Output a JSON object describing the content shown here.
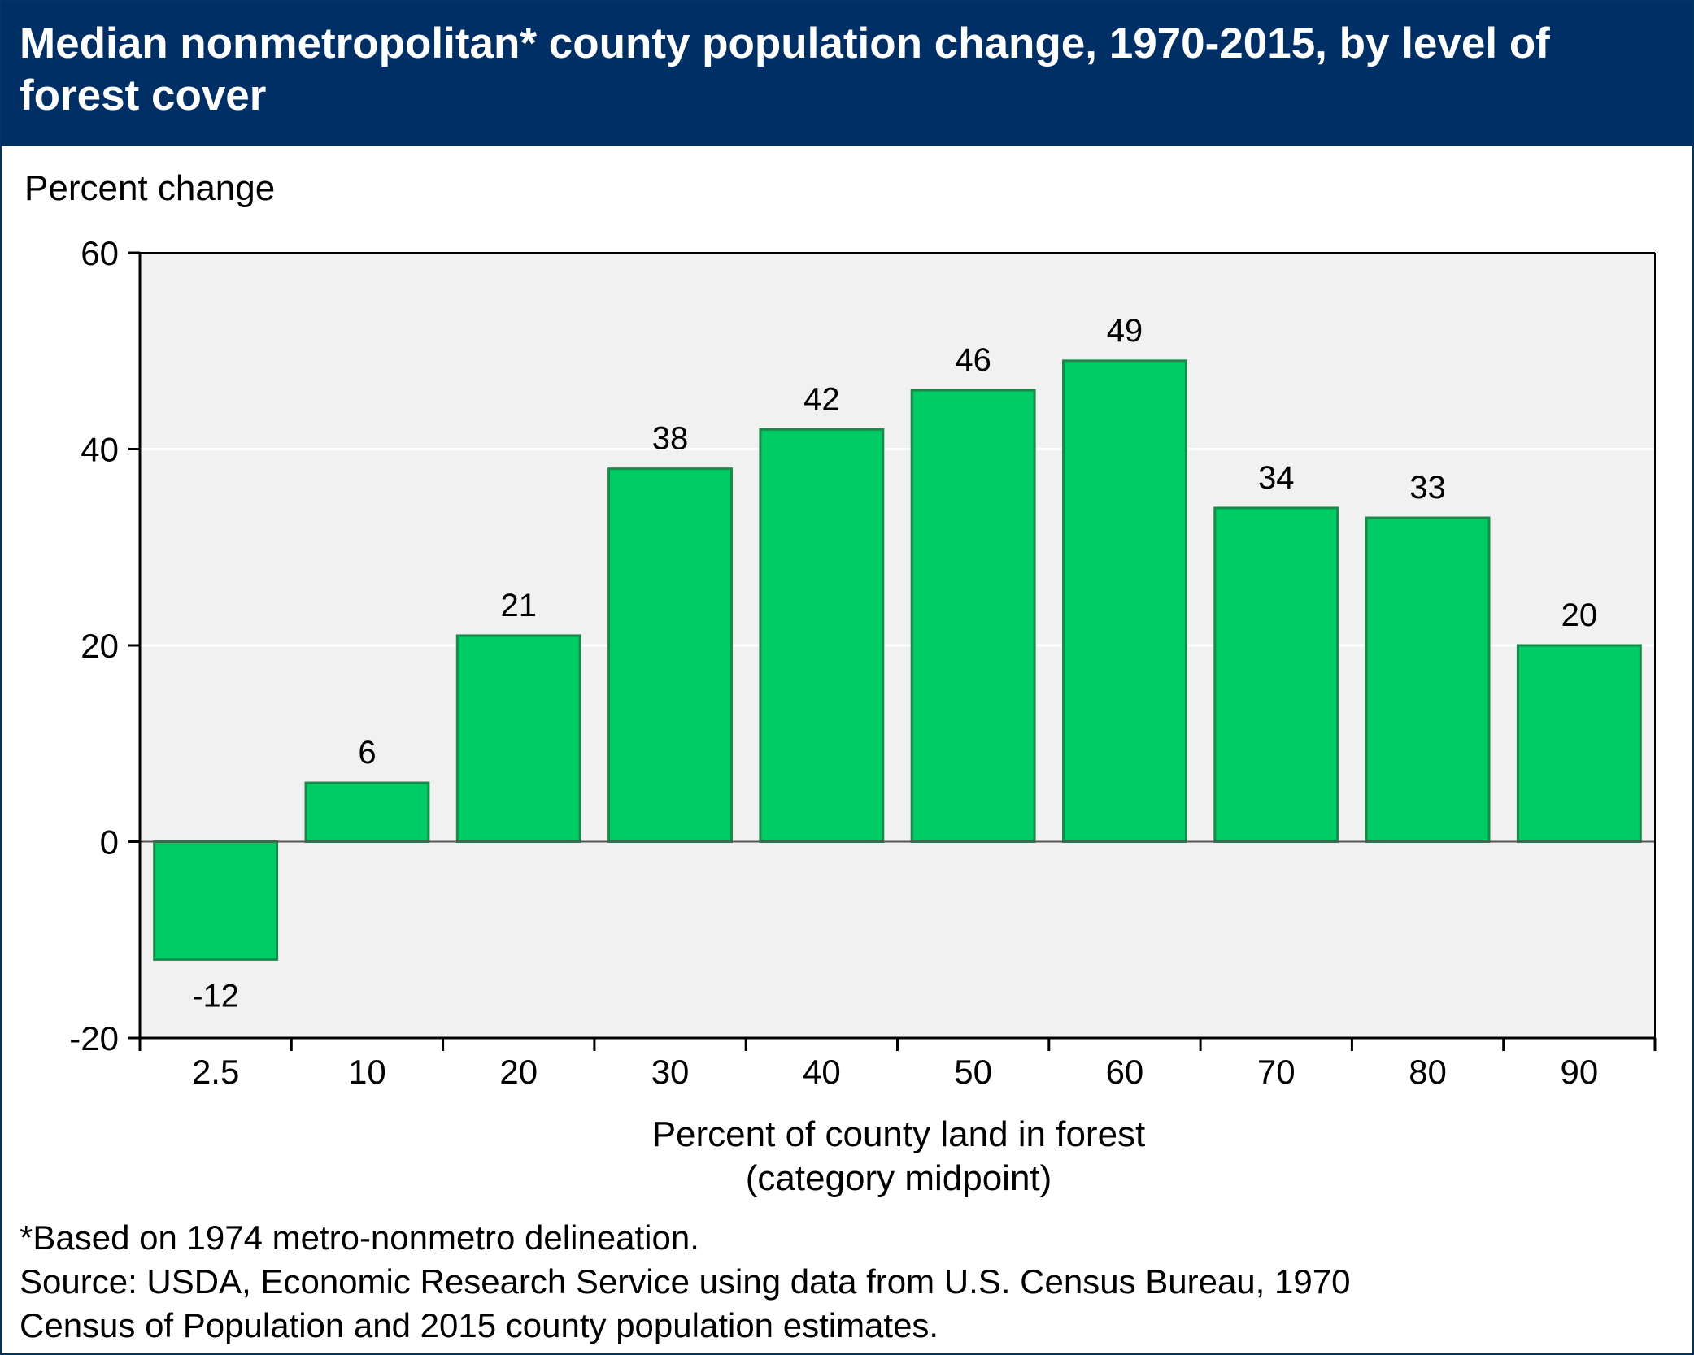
{
  "title": "Median nonmetropolitan* county population change, 1970-2015, by level of forest cover",
  "colors": {
    "header_bg": "#002f65",
    "bar_fill": "#00cc66",
    "bar_stroke": "#1a8a4a",
    "plot_bg": "#f1f1f1"
  },
  "chart_data": {
    "type": "bar",
    "title": "Median nonmetropolitan* county population change, 1970-2015, by level of forest cover",
    "ylabel": "Percent change",
    "xlabel": "Percent of county land in forest",
    "xlabel_sub": "(category midpoint)",
    "categories": [
      "2.5",
      "10",
      "20",
      "30",
      "40",
      "50",
      "60",
      "70",
      "80",
      "90"
    ],
    "values": [
      -12,
      6,
      21,
      38,
      42,
      46,
      49,
      34,
      33,
      20
    ],
    "data_labels": [
      "-12",
      "6",
      "21",
      "38",
      "42",
      "46",
      "49",
      "34",
      "33",
      "20"
    ],
    "ylim": [
      -20,
      60
    ],
    "yticks": [
      -20,
      0,
      20,
      40,
      60
    ],
    "grid": true,
    "legend": "none"
  },
  "notes": {
    "footnote": "*Based on 1974 metro-nonmetro delineation.",
    "source_line1": "Source: USDA, Economic Research Service using data from U.S. Census Bureau, 1970",
    "source_line2": "Census of Population and 2015 county population estimates."
  }
}
